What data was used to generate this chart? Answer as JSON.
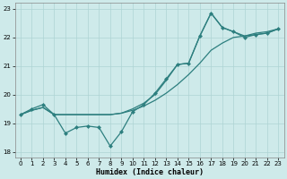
{
  "xlabel": "Humidex (Indice chaleur)",
  "bg_color": "#ceeaea",
  "line_color": "#2d7f7f",
  "grid_color": "#aed4d4",
  "xlim": [
    -0.5,
    23.5
  ],
  "ylim": [
    17.8,
    23.2
  ],
  "xticks": [
    0,
    1,
    2,
    3,
    4,
    5,
    6,
    7,
    8,
    9,
    10,
    11,
    12,
    13,
    14,
    15,
    16,
    17,
    18,
    19,
    20,
    21,
    22,
    23
  ],
  "yticks": [
    18,
    19,
    20,
    21,
    22,
    23
  ],
  "line_zigzag_x": [
    0,
    1,
    2,
    3,
    4,
    5,
    6,
    7,
    8,
    9,
    10,
    11,
    12,
    13,
    14,
    15,
    16,
    17,
    18,
    19,
    20,
    21,
    22,
    23
  ],
  "line_zigzag_y": [
    19.3,
    19.5,
    19.65,
    19.3,
    18.65,
    18.85,
    18.9,
    18.85,
    18.2,
    18.7,
    19.4,
    19.65,
    20.05,
    20.55,
    21.05,
    21.1,
    22.05,
    22.85,
    22.35,
    22.2,
    22.0,
    22.1,
    22.15,
    22.3
  ],
  "line_low_x": [
    0,
    1,
    2,
    3,
    4,
    5,
    6,
    7,
    8,
    9,
    10,
    11,
    12,
    13,
    14,
    15,
    16,
    17,
    18,
    19,
    20,
    21,
    22,
    23
  ],
  "line_low_y": [
    19.3,
    19.45,
    19.55,
    19.3,
    19.3,
    19.3,
    19.3,
    19.3,
    19.3,
    19.35,
    19.45,
    19.6,
    19.8,
    20.05,
    20.35,
    20.7,
    21.1,
    21.55,
    21.8,
    22.0,
    22.05,
    22.1,
    22.15,
    22.3
  ],
  "line_high_x": [
    0,
    1,
    2,
    3,
    4,
    5,
    6,
    7,
    8,
    9,
    10,
    11,
    12,
    13,
    14,
    15,
    16,
    17,
    18,
    19,
    20,
    21,
    22,
    23
  ],
  "line_high_y": [
    19.3,
    19.45,
    19.55,
    19.3,
    19.3,
    19.3,
    19.3,
    19.3,
    19.3,
    19.35,
    19.5,
    19.7,
    20.0,
    20.5,
    21.05,
    21.1,
    22.05,
    22.85,
    22.35,
    22.2,
    22.05,
    22.15,
    22.2,
    22.3
  ],
  "markersize": 2.5,
  "linewidth": 0.9,
  "xlabel_fontsize": 6.0,
  "tick_fontsize": 5.0
}
